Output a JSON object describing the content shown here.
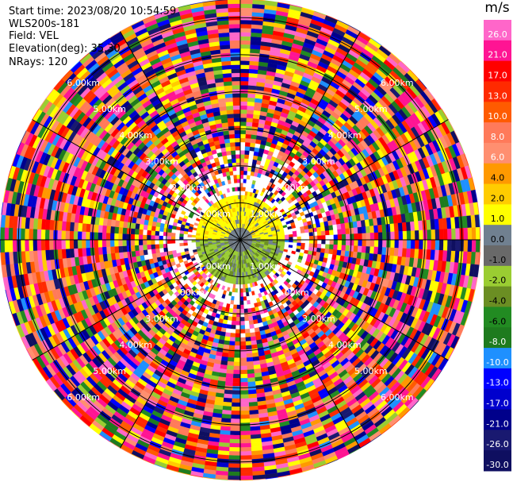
{
  "info": {
    "start_time": "Start time: 2023/08/20 10:54:59",
    "instrument": "WLS200s-181",
    "field": "Field: VEL",
    "elevation": "Elevation(deg): 35.30",
    "nrays": "NRays: 120"
  },
  "chart_data": {
    "type": "heatmap",
    "projection": "polar-ppi",
    "field": "VEL",
    "units": "m/s",
    "nrays": 120,
    "range_rings_km": [
      1.0,
      2.0,
      3.0,
      4.0,
      5.0,
      6.0
    ],
    "range_labels": [
      "1.00km",
      "2.00km",
      "3.00km",
      "4.00km",
      "5.00km",
      "6.00km"
    ],
    "grid": true,
    "colorbar": {
      "label": "m/s",
      "ticks": [
        "26.0",
        "21.0",
        "17.0",
        "13.0",
        "10.0",
        "8.0",
        "6.0",
        "4.0",
        "2.0",
        "1.0",
        "0.0",
        "-1.0",
        "-2.0",
        "-4.0",
        "-6.0",
        "-8.0",
        "-10.0",
        "-13.0",
        "-17.0",
        "-21.0",
        "-26.0",
        "-30.0"
      ],
      "colors": [
        "#ff66c9",
        "#ff1493",
        "#ff0000",
        "#ff2a00",
        "#ff5b00",
        "#ff7a5a",
        "#ff8f70",
        "#ff9900",
        "#ffcc00",
        "#ffff00",
        "#708090",
        "#696969",
        "#9acd32",
        "#6b8e23",
        "#228b22",
        "#1e7b1e",
        "#1e90ff",
        "#0000ff",
        "#0000cd",
        "#00008b",
        "#191970",
        "#0f0f60"
      ]
    }
  }
}
